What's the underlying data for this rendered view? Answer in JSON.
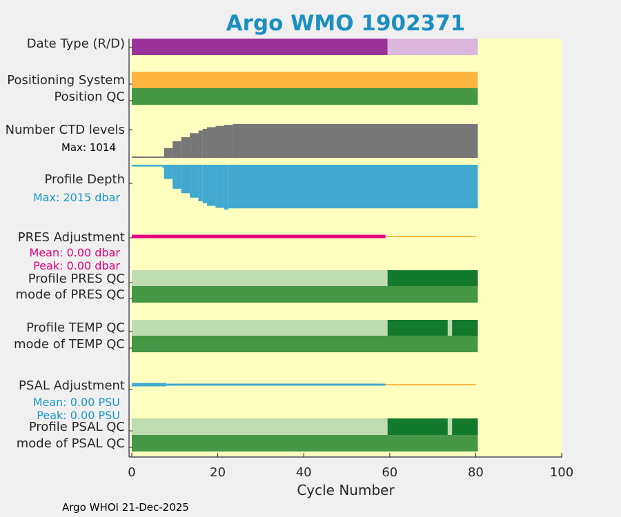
{
  "chart_data": {
    "type": "bar",
    "title": "Argo WMO 1902371",
    "xlabel": "Cycle Number",
    "xlim": [
      0,
      100
    ],
    "xticks": [
      0,
      20,
      40,
      60,
      80,
      100
    ],
    "footer": "Argo WHOI 21-Dec-2025",
    "n_cycles": 81,
    "rows": {
      "date_type": {
        "label": "Date Type (R/D)",
        "segments": [
          {
            "start": 0,
            "end": 59.5,
            "code": "D",
            "color": "#993399"
          },
          {
            "start": 59.5,
            "end": 80.5,
            "code": "R",
            "color": "#dbb8db"
          }
        ]
      },
      "positioning_system": {
        "label": "Positioning System",
        "segments": [
          {
            "start": 0,
            "end": 80.5,
            "code": "GPS",
            "color": "#fdb53f"
          }
        ]
      },
      "position_qc": {
        "label": "Position QC",
        "segments": [
          {
            "start": 0,
            "end": 80.5,
            "code": "1",
            "color": "#459745"
          }
        ]
      },
      "ctd_levels": {
        "label": "Number CTD levels",
        "max_label": "Max: 1014",
        "max": 1014,
        "color": "#777777",
        "steps": [
          {
            "start": 0,
            "end": 7.5,
            "value": 40
          },
          {
            "start": 7.5,
            "end": 9.5,
            "value": 290
          },
          {
            "start": 9.5,
            "end": 11.5,
            "value": 500
          },
          {
            "start": 11.5,
            "end": 13.5,
            "value": 620
          },
          {
            "start": 13.5,
            "end": 15.5,
            "value": 740
          },
          {
            "start": 15.5,
            "end": 16.5,
            "value": 820
          },
          {
            "start": 16.5,
            "end": 17.5,
            "value": 870
          },
          {
            "start": 17.5,
            "end": 19.5,
            "value": 920
          },
          {
            "start": 19.5,
            "end": 21.5,
            "value": 960
          },
          {
            "start": 21.5,
            "end": 23.5,
            "value": 990
          },
          {
            "start": 23.5,
            "end": 80.5,
            "value": 1014
          }
        ]
      },
      "profile_depth": {
        "label": "Profile Depth",
        "max_label": "Max: 2015 dbar",
        "max": 2015,
        "color": "#41a9d0",
        "steps": [
          {
            "start": 0,
            "end": 7,
            "value": 80
          },
          {
            "start": 7,
            "end": 7.5,
            "value": 130
          },
          {
            "start": 7.5,
            "end": 9.5,
            "value": 640
          },
          {
            "start": 9.5,
            "end": 11.5,
            "value": 1080
          },
          {
            "start": 11.5,
            "end": 13.5,
            "value": 1280
          },
          {
            "start": 13.5,
            "end": 15.5,
            "value": 1480
          },
          {
            "start": 15.5,
            "end": 16.5,
            "value": 1640
          },
          {
            "start": 16.5,
            "end": 17.5,
            "value": 1730
          },
          {
            "start": 17.5,
            "end": 19.5,
            "value": 1850
          },
          {
            "start": 19.5,
            "end": 21.5,
            "value": 1940
          },
          {
            "start": 21.5,
            "end": 22.5,
            "value": 2015
          },
          {
            "start": 22.5,
            "end": 80.5,
            "value": 1960
          }
        ]
      },
      "pres_adjustment": {
        "label": "PRES Adjustment",
        "mean_label": "Mean: 0.00 dbar",
        "peak_label": "Peak: 0.00 dbar",
        "text_color": "#e6007e",
        "lines": [
          {
            "start": 0,
            "end": 59,
            "color": "#e6007e",
            "width": 5
          },
          {
            "start": 59,
            "end": 80,
            "color": "#fdb53f",
            "width": 2
          }
        ]
      },
      "profile_pres_qc": {
        "label": "Profile PRES QC",
        "segments": [
          {
            "start": 0,
            "end": 59.5,
            "code": "A",
            "color": "#bedcb0"
          },
          {
            "start": 59.5,
            "end": 80.5,
            "code": "F",
            "color": "#127a2a"
          }
        ]
      },
      "mode_pres_qc": {
        "label": "mode of PRES QC",
        "segments": [
          {
            "start": 0,
            "end": 80.5,
            "code": "1",
            "color": "#459745"
          }
        ]
      },
      "profile_temp_qc": {
        "label": "Profile TEMP QC",
        "segments": [
          {
            "start": 0,
            "end": 59.5,
            "code": "A",
            "color": "#bedcb0"
          },
          {
            "start": 59.5,
            "end": 73.5,
            "code": "F",
            "color": "#127a2a"
          },
          {
            "start": 73.5,
            "end": 74.5,
            "code": "A",
            "color": "#bedcb0"
          },
          {
            "start": 74.5,
            "end": 80.5,
            "code": "F",
            "color": "#127a2a"
          }
        ]
      },
      "mode_temp_qc": {
        "label": "mode of TEMP QC",
        "segments": [
          {
            "start": 0,
            "end": 80.5,
            "code": "1",
            "color": "#459745"
          }
        ]
      },
      "psal_adjustment": {
        "label": "PSAL Adjustment",
        "mean_label": "Mean: 0.00 PSU",
        "peak_label": "Peak: 0.00 PSU",
        "text_color": "#1a97c4",
        "lines": [
          {
            "start": 0,
            "end": 8,
            "color": "#41a9d0",
            "width": 5
          },
          {
            "start": 8,
            "end": 59,
            "color": "#41a9d0",
            "width": 3
          },
          {
            "start": 59,
            "end": 80,
            "color": "#fdb53f",
            "width": 2
          }
        ]
      },
      "profile_psal_qc": {
        "label": "Profile PSAL QC",
        "segments": [
          {
            "start": 0,
            "end": 59.5,
            "code": "A",
            "color": "#bedcb0"
          },
          {
            "start": 59.5,
            "end": 73.5,
            "code": "F",
            "color": "#127a2a"
          },
          {
            "start": 73.5,
            "end": 74.5,
            "code": "A",
            "color": "#bedcb0"
          },
          {
            "start": 74.5,
            "end": 80.5,
            "code": "F",
            "color": "#127a2a"
          }
        ]
      },
      "mode_psal_qc": {
        "label": "mode of PSAL QC",
        "segments": [
          {
            "start": 0,
            "end": 80.5,
            "code": "1",
            "color": "#459745"
          }
        ]
      }
    },
    "colors": {
      "plot_background": "#ffffc0",
      "title": "#1a8fc0",
      "axis": "#000000"
    }
  }
}
